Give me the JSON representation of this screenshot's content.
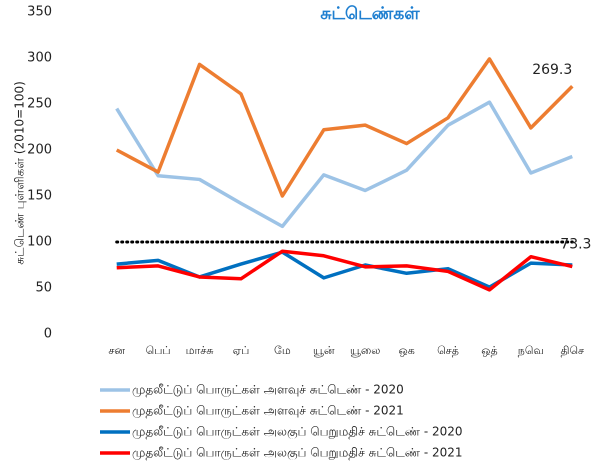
{
  "chart_data": {
    "type": "line",
    "title": "சுட்டெண்கள்",
    "y_label": "சுட்டெண் புள்ளிகள் (2010=100)",
    "categories": [
      "சன",
      "பெப்",
      "மாச்சு",
      "ஏப்",
      "மே",
      "யூன்",
      "யூலை",
      "ஒக",
      "செத்",
      "ஒத்",
      "நவெ",
      "திசெ"
    ],
    "series": [
      {
        "name": "முதலீட்டுப் பொருட்கள் அளவுச் சுட்டெண் - 2020",
        "color": "#9dc3e6",
        "values": [
          245,
          172,
          168,
          142,
          117,
          173,
          156,
          178,
          227,
          252,
          175,
          193
        ]
      },
      {
        "name": "முதலீட்டுப் பொருட்கள் அளவுச் சுட்டெண் - 2021",
        "color": "#ed7d31",
        "values": [
          200,
          176,
          293,
          261,
          150,
          222,
          227,
          207,
          235,
          299,
          224,
          269.3
        ]
      },
      {
        "name": "முதலீட்டுப் பொருட்கள் அலகுப் பெறுமதிச் சுட்டெண் - 2020",
        "color": "#0070c0",
        "values": [
          76,
          80,
          62,
          76,
          89,
          61,
          75,
          66,
          71,
          51,
          77,
          75
        ]
      },
      {
        "name": "முதலீட்டுப் பொருட்கள் அலகுப் பெறுமதிச் சுட்டெண் - 2021",
        "color": "#ff0000",
        "values": [
          72,
          74,
          62,
          60,
          90,
          85,
          73,
          74,
          68,
          48,
          84,
          73.3
        ]
      }
    ],
    "reference_line": 100,
    "ylim": [
      0,
      350
    ],
    "yticks": [
      0,
      50,
      100,
      150,
      200,
      250,
      300,
      350
    ],
    "grid": false
  }
}
